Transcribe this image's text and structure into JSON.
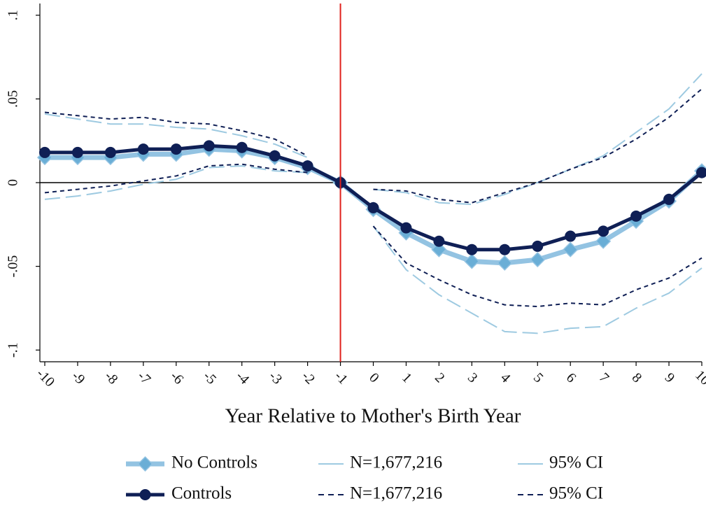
{
  "chart_data": {
    "type": "line",
    "x_label": "Year Relative to Mother's Birth Year",
    "x": [
      -10,
      -9,
      -8,
      -7,
      -6,
      -5,
      -4,
      -3,
      -2,
      -1,
      0,
      1,
      2,
      3,
      4,
      5,
      6,
      7,
      8,
      9,
      10
    ],
    "xlim": [
      -10,
      10
    ],
    "xticks": [
      -10,
      -9,
      -8,
      -7,
      -6,
      -5,
      -4,
      -3,
      -2,
      -1,
      0,
      1,
      2,
      3,
      4,
      5,
      6,
      7,
      8,
      9,
      10
    ],
    "ylim": [
      -0.107,
      0.107
    ],
    "yticks": [
      {
        "value": -0.1,
        "label": "-.1"
      },
      {
        "value": -0.05,
        "label": "-.05"
      },
      0,
      {
        "value": 0.05,
        "label": ".05"
      },
      {
        "value": 0.1,
        "label": ".1"
      }
    ],
    "vline": {
      "x": -1,
      "color": "#e0201c"
    },
    "hline": {
      "y": 0,
      "color": "#000000"
    },
    "series": [
      {
        "name": "No Controls",
        "color": "#6aaed6",
        "line_color": "#93c3e2",
        "line_width": 7,
        "line_style": "solid",
        "marker": "diamond",
        "values": [
          0.015,
          0.015,
          0.015,
          0.017,
          0.017,
          0.02,
          0.019,
          0.015,
          0.009,
          0,
          -0.016,
          -0.03,
          -0.04,
          -0.047,
          -0.048,
          -0.046,
          -0.04,
          -0.035,
          -0.023,
          -0.011,
          0.007
        ]
      },
      {
        "name": "N=1,677,216",
        "color": "#9ecae1",
        "line_width": 2,
        "line_style": "longdash",
        "marker": null,
        "values": [
          0.041,
          0.038,
          0.035,
          0.035,
          0.033,
          0.032,
          0.028,
          0.023,
          0.015,
          null,
          -0.004,
          -0.006,
          -0.012,
          -0.013,
          -0.007,
          0.0,
          0.008,
          0.016,
          0.03,
          0.044,
          0.065
        ]
      },
      {
        "name": "95% CI",
        "color": "#9ecae1",
        "line_width": 2,
        "line_style": "longdash",
        "marker": null,
        "values": [
          -0.01,
          -0.008,
          -0.005,
          -0.001,
          0.002,
          0.009,
          0.01,
          0.007,
          0.006,
          null,
          -0.026,
          -0.052,
          -0.067,
          -0.078,
          -0.089,
          -0.09,
          -0.087,
          -0.086,
          -0.075,
          -0.066,
          -0.051
        ]
      },
      {
        "name": "Controls",
        "color": "#0f1f55",
        "line_color": "#0f1f55",
        "line_width": 5,
        "line_style": "solid",
        "marker": "circle",
        "values": [
          0.018,
          0.018,
          0.018,
          0.02,
          0.02,
          0.022,
          0.021,
          0.016,
          0.01,
          0,
          -0.015,
          -0.027,
          -0.035,
          -0.04,
          -0.04,
          -0.038,
          -0.032,
          -0.029,
          -0.02,
          -0.01,
          0.006
        ]
      },
      {
        "name": "N=1,677,216",
        "color": "#0f1f55",
        "line_width": 2,
        "line_style": "shortdash",
        "marker": null,
        "values": [
          0.042,
          0.04,
          0.038,
          0.039,
          0.036,
          0.035,
          0.031,
          0.026,
          0.016,
          null,
          -0.004,
          -0.005,
          -0.01,
          -0.012,
          -0.006,
          0.0,
          0.008,
          0.015,
          0.026,
          0.039,
          0.056
        ]
      },
      {
        "name": "95% CI",
        "color": "#0f1f55",
        "line_width": 2,
        "line_style": "shortdash",
        "marker": null,
        "values": [
          -0.006,
          -0.004,
          -0.002,
          0.001,
          0.004,
          0.01,
          0.011,
          0.008,
          0.006,
          null,
          -0.026,
          -0.048,
          -0.058,
          -0.067,
          -0.073,
          -0.074,
          -0.072,
          -0.073,
          -0.064,
          -0.057,
          -0.045
        ]
      }
    ]
  }
}
